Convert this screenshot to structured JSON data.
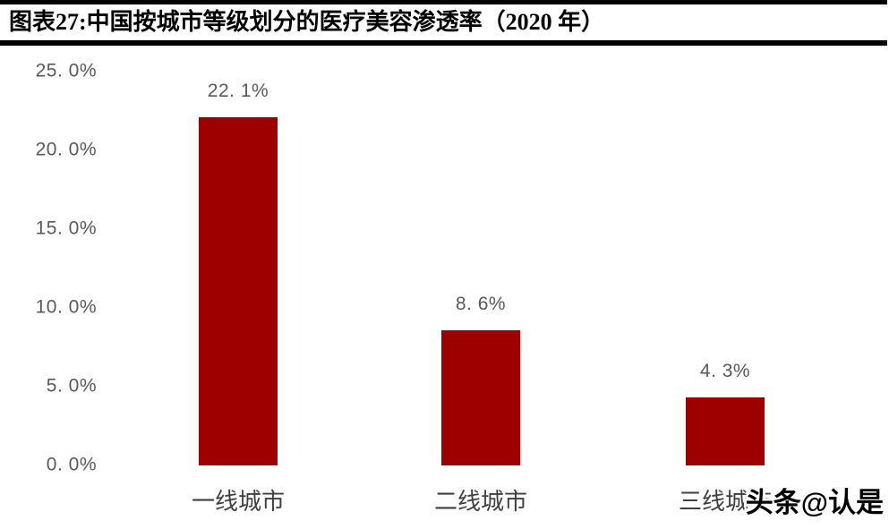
{
  "header": {
    "title": "图表27:中国按城市等级划分的医疗美容渗透率（2020 年）"
  },
  "chart_data": {
    "type": "bar",
    "title": "图表27:中国按城市等级划分的医疗美容渗透率（2020 年）",
    "categories": [
      "一线城市",
      "二线城市",
      "三线城市"
    ],
    "values": [
      22.1,
      8.6,
      4.3
    ],
    "value_labels": [
      "22. 1%",
      "8. 6%",
      "4. 3%"
    ],
    "xlabel": "",
    "ylabel": "",
    "ylim": [
      0,
      25
    ],
    "yticks": {
      "values": [
        0,
        5,
        10,
        15,
        20,
        25
      ],
      "labels": [
        "0. 0%",
        "5. 0%",
        "10. 0%",
        "15. 0%",
        "20. 0%",
        "25. 0%"
      ]
    },
    "grid": false,
    "legend": "none",
    "bar_color": "#9E0000",
    "label_color": "#595959",
    "tick_color": "#595959",
    "category_color": "#3f3f3f"
  },
  "watermark": {
    "text": "头条@认是"
  }
}
